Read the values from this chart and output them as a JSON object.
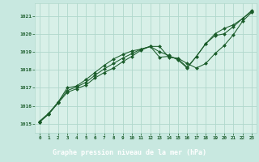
{
  "bg_color": "#c8e8e0",
  "plot_bg_color": "#d8f0e8",
  "grid_color": "#b0d8cc",
  "line_color": "#1a5c2a",
  "marker_color": "#1a5c2a",
  "title": "Graphe pression niveau de la mer (hPa)",
  "title_color": "#ffffff",
  "title_bg": "#2a6e3a",
  "xlim": [
    -0.5,
    23.5
  ],
  "ylim": [
    1014.5,
    1021.7
  ],
  "yticks": [
    1015,
    1016,
    1017,
    1018,
    1019,
    1020,
    1021
  ],
  "xticks": [
    0,
    1,
    2,
    3,
    4,
    5,
    6,
    7,
    8,
    9,
    10,
    11,
    12,
    13,
    14,
    15,
    16,
    17,
    18,
    19,
    20,
    21,
    22,
    23
  ],
  "series": [
    [
      1015.1,
      1015.55,
      1016.15,
      1016.75,
      1016.95,
      1017.15,
      1017.55,
      1017.85,
      1018.1,
      1018.45,
      1018.75,
      1019.1,
      1019.3,
      1019.3,
      1018.7,
      1018.65,
      1018.35,
      1018.1,
      1018.35,
      1018.9,
      1019.35,
      1019.95,
      1020.7,
      1021.2
    ],
    [
      1015.1,
      1015.55,
      1016.2,
      1017.0,
      1017.1,
      1017.45,
      1017.85,
      1018.25,
      1018.6,
      1018.85,
      1019.05,
      1019.15,
      1019.3,
      1018.7,
      1018.75,
      1018.6,
      1018.15,
      1018.75,
      1019.45,
      1019.9,
      1020.0,
      1020.4,
      1020.85,
      1021.25
    ],
    [
      1015.15,
      1015.6,
      1016.2,
      1016.85,
      1017.05,
      1017.3,
      1017.7,
      1018.05,
      1018.35,
      1018.65,
      1018.9,
      1019.15,
      1019.3,
      1019.0,
      1018.8,
      1018.55,
      1018.1,
      1018.75,
      1019.45,
      1020.0,
      1020.3,
      1020.5,
      1020.85,
      1021.3
    ]
  ]
}
